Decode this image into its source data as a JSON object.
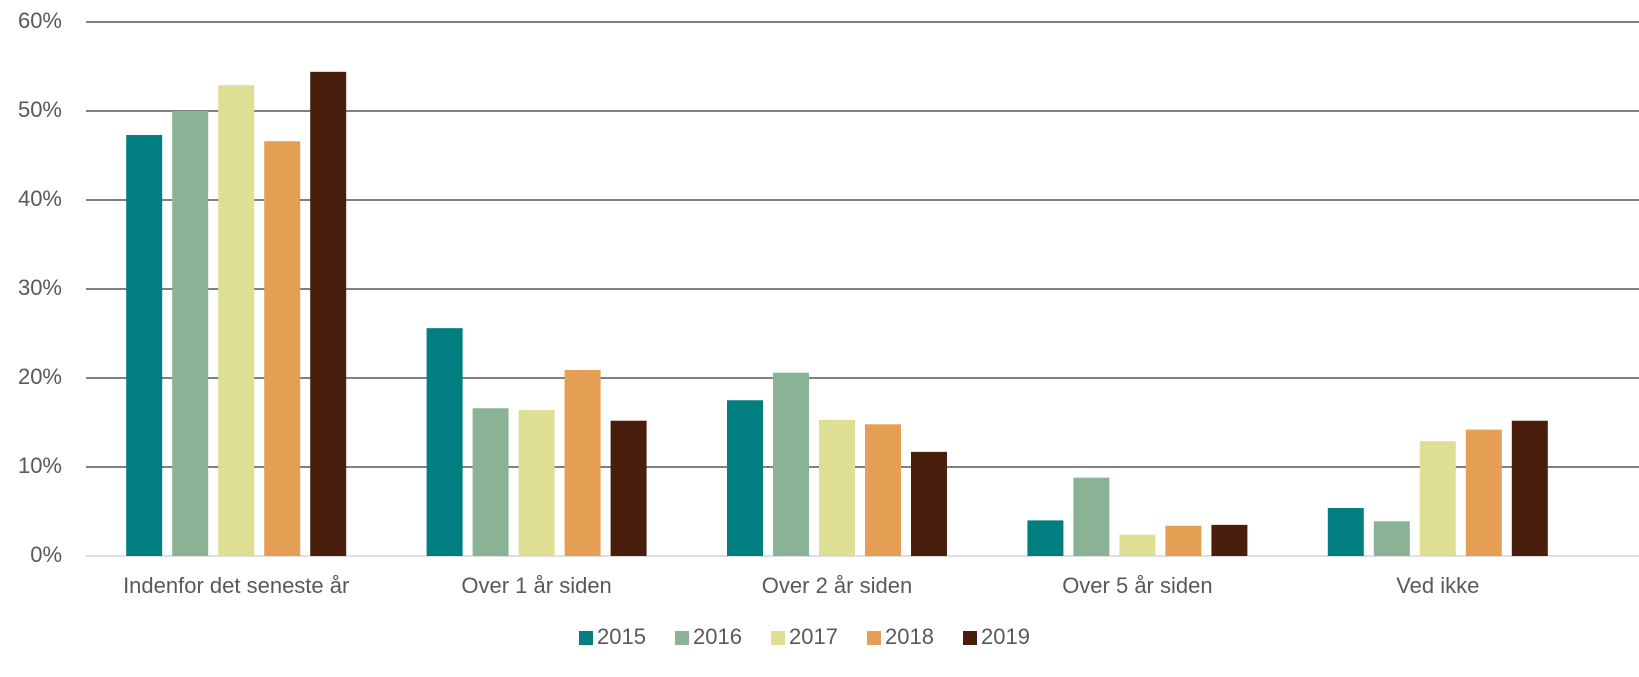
{
  "chart_data": {
    "type": "bar",
    "categories": [
      "Indenfor det seneste år",
      "Over 1 år siden",
      "Over 2 år siden",
      "Over 5 år siden",
      "Ved ikke"
    ],
    "series": [
      {
        "name": "2015",
        "color": "#007e80",
        "values": [
          47.3,
          25.6,
          17.5,
          4.0,
          5.4
        ]
      },
      {
        "name": "2016",
        "color": "#8ab294",
        "values": [
          50.0,
          16.6,
          20.6,
          8.8,
          3.9
        ]
      },
      {
        "name": "2017",
        "color": "#dfdf94",
        "values": [
          52.9,
          16.4,
          15.3,
          2.4,
          12.9
        ]
      },
      {
        "name": "2018",
        "color": "#e49f54",
        "values": [
          46.6,
          20.9,
          14.8,
          3.4,
          14.2
        ]
      },
      {
        "name": "2019",
        "color": "#4a1e0c",
        "values": [
          54.4,
          15.2,
          11.7,
          3.5,
          15.2
        ]
      }
    ],
    "ylim": [
      0,
      60
    ],
    "yticks": [
      {
        "value": 0,
        "label": "0%"
      },
      {
        "value": 10,
        "label": "10%"
      },
      {
        "value": 20,
        "label": "20%"
      },
      {
        "value": 30,
        "label": "30%"
      },
      {
        "value": 40,
        "label": "40%"
      },
      {
        "value": 50,
        "label": "50%"
      },
      {
        "value": 60,
        "label": "60%"
      }
    ],
    "grid": true,
    "legend": "bottom"
  }
}
